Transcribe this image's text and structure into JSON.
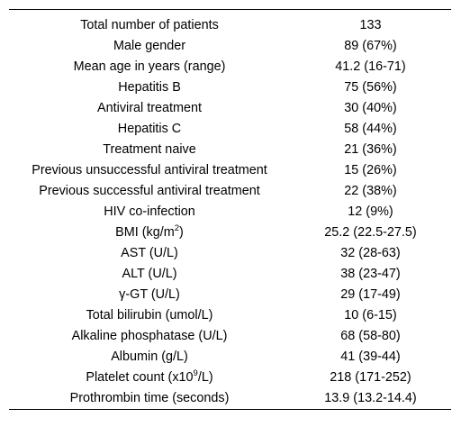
{
  "table": {
    "rows": [
      {
        "label": "Total number of patients",
        "value": "133"
      },
      {
        "label": "Male gender",
        "value": "89 (67%)"
      },
      {
        "label": "Mean age in years (range)",
        "value": "41.2 (16-71)"
      },
      {
        "label": "Hepatitis B",
        "value": "75 (56%)"
      },
      {
        "label": "Antiviral treatment",
        "value": "30 (40%)"
      },
      {
        "label": "Hepatitis C",
        "value": "58 (44%)"
      },
      {
        "label": "Treatment naive",
        "value": "21 (36%)"
      },
      {
        "label": "Previous unsuccessful antiviral treatment",
        "value": "15 (26%)"
      },
      {
        "label": "Previous successful antiviral treatment",
        "value": "22 (38%)"
      },
      {
        "label": "HIV co-infection",
        "value": "12 (9%)"
      },
      {
        "label_pre": "BMI (kg/m",
        "label_sup": "2",
        "label_post": ")",
        "value": "25.2 (22.5-27.5)"
      },
      {
        "label": "AST (U/L)",
        "value": "32 (28-63)"
      },
      {
        "label": "ALT (U/L)",
        "value": "38 (23-47)"
      },
      {
        "label": "γ-GT (U/L)",
        "value": "29 (17-49)"
      },
      {
        "label": "Total bilirubin (umol/L)",
        "value": "10 (6-15)"
      },
      {
        "label": "Alkaline phosphatase (U/L)",
        "value": "68 (58-80)"
      },
      {
        "label": "Albumin (g/L)",
        "value": "41 (39-44)"
      },
      {
        "label_pre": "Platelet count (x10",
        "label_sup": "9",
        "label_post": "/L)",
        "value": "218 (171-252)"
      },
      {
        "label": "Prothrombin time (seconds)",
        "value": "13.9 (13.2-14.4)"
      }
    ]
  }
}
